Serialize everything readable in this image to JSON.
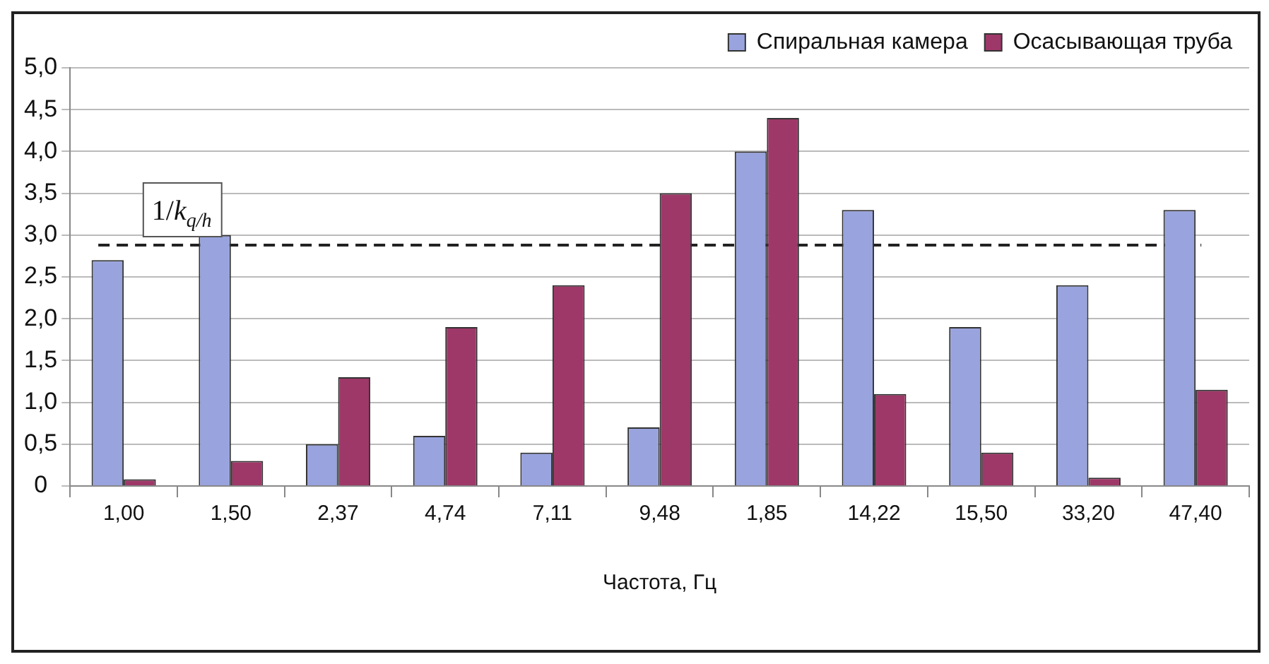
{
  "chart_data": {
    "type": "bar",
    "xlabel": "Частота, Гц",
    "categories": [
      "1,00",
      "1,50",
      "2,37",
      "4,74",
      "7,11",
      "9,48",
      "1,85",
      "14,22",
      "15,50",
      "33,20",
      "47,40"
    ],
    "series": [
      {
        "name": "Спиральная камера",
        "color": "#99a3dd",
        "values": [
          2.7,
          3.0,
          0.5,
          0.6,
          0.4,
          0.7,
          4.0,
          3.3,
          1.9,
          2.4,
          3.3
        ]
      },
      {
        "name": "Осасывающая труба",
        "color": "#9e3868",
        "values": [
          0.08,
          0.3,
          1.3,
          1.9,
          2.4,
          3.5,
          4.4,
          1.1,
          0.4,
          0.1,
          1.15
        ]
      }
    ],
    "ylim": [
      0,
      5
    ],
    "yticks": [
      0,
      {
        "value": 0.5,
        "label": "0,5"
      },
      {
        "value": 1,
        "label": "1,0"
      },
      {
        "value": 1.5,
        "label": "1,5"
      },
      {
        "value": 2,
        "label": "2,0"
      },
      {
        "value": 2.5,
        "label": "2,5"
      },
      {
        "value": 3,
        "label": "3,0"
      },
      {
        "value": 3.5,
        "label": "3,5"
      },
      {
        "value": 4,
        "label": "4,0"
      },
      {
        "value": 4.5,
        "label": "4,5"
      },
      {
        "value": 5,
        "label": "5,0"
      }
    ],
    "grid": "y",
    "legend": "top right",
    "ref_lines": [
      {
        "axis": "y",
        "value": 2.88,
        "label": "1/k$_{q/h}$",
        "color": "#222222",
        "line_style": "dashed"
      }
    ]
  }
}
